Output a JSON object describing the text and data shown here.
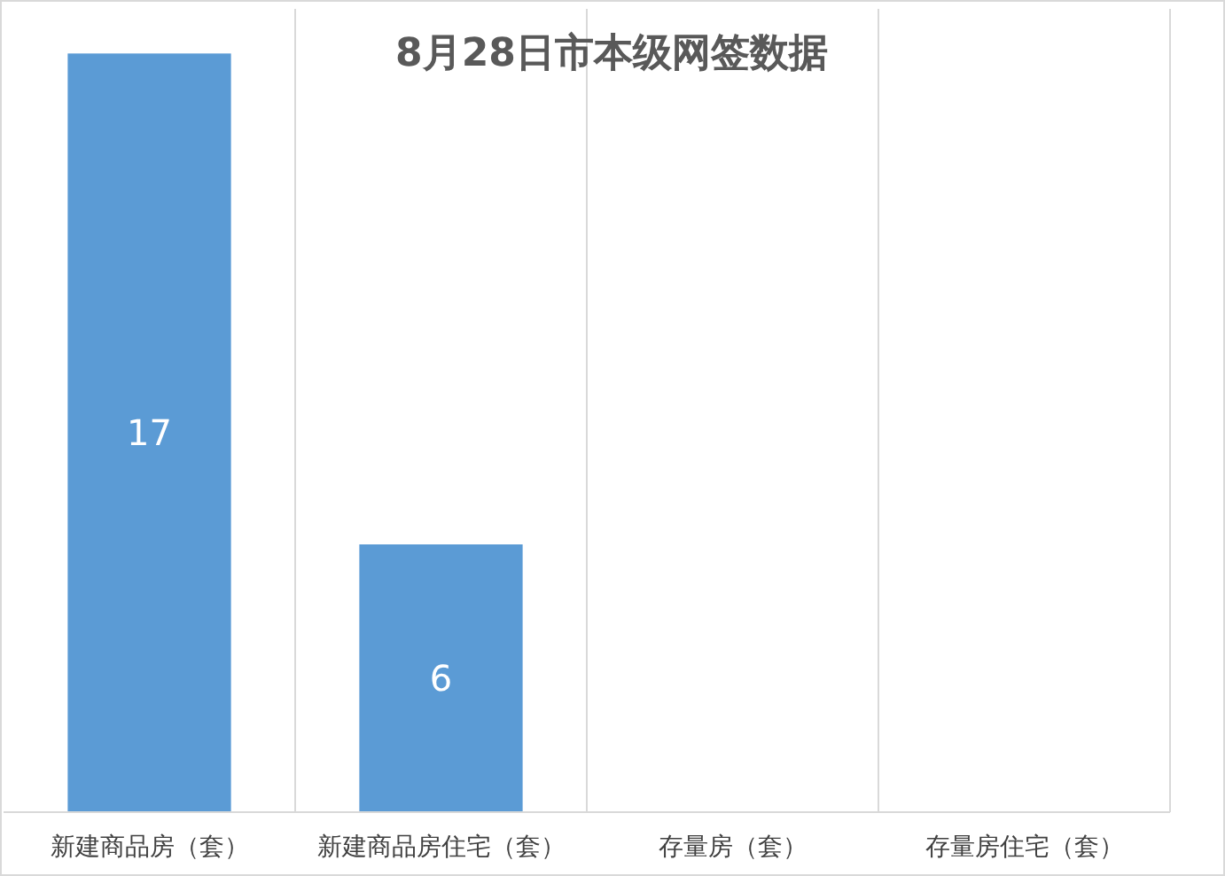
{
  "chart_data": {
    "type": "bar",
    "title": "8月28日市本级网签数据",
    "categories": [
      "新建商品房（套）",
      "新建商品房住宅（套）",
      "存量房（套）",
      "存量房住宅（套）"
    ],
    "values": [
      17,
      6,
      0,
      0
    ],
    "color": "#5b9bd5",
    "value_labels": [
      "17",
      "6",
      null,
      null
    ],
    "ylim": [
      0,
      18
    ],
    "grid": "x"
  }
}
